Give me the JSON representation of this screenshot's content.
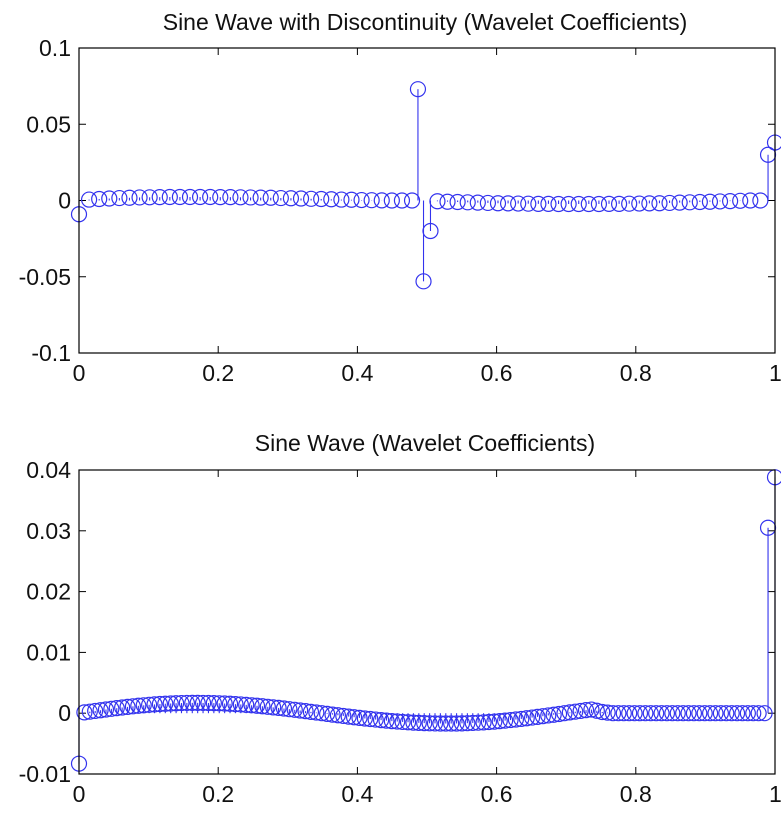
{
  "style": {
    "series_color": "#3333ee",
    "axis_color": "#000000",
    "background": "#ffffff"
  },
  "chart_data": [
    {
      "type": "stem",
      "title": "Sine Wave with Discontinuity (Wavelet Coefficients)",
      "xlabel": "",
      "ylabel": "",
      "xlim": [
        0,
        1
      ],
      "ylim": [
        -0.1,
        0.1
      ],
      "xticks": [
        0,
        0.2,
        0.4,
        0.6,
        0.8,
        1
      ],
      "xtick_labels": [
        "0",
        "0.2",
        "0.4",
        "0.6",
        "0.8",
        "1"
      ],
      "yticks": [
        -0.1,
        -0.05,
        0,
        0.05,
        0.1
      ],
      "ytick_labels": [
        "-0.1",
        "-0.05",
        "0",
        "0.05",
        "0.1"
      ],
      "grid": false,
      "x": [
        0,
        0.0145,
        0.029,
        0.0435,
        0.058,
        0.0725,
        0.087,
        0.1015,
        0.116,
        0.1305,
        0.145,
        0.1595,
        0.174,
        0.1885,
        0.203,
        0.2175,
        0.232,
        0.2465,
        0.261,
        0.2755,
        0.29,
        0.3045,
        0.319,
        0.3335,
        0.348,
        0.3625,
        0.377,
        0.3915,
        0.406,
        0.4205,
        0.435,
        0.4495,
        0.464,
        0.4785,
        0.487,
        0.495,
        0.505,
        0.515,
        0.5295,
        0.544,
        0.5585,
        0.573,
        0.5875,
        0.602,
        0.6165,
        0.631,
        0.6455,
        0.66,
        0.6745,
        0.689,
        0.7035,
        0.718,
        0.7325,
        0.747,
        0.7615,
        0.776,
        0.7905,
        0.805,
        0.8195,
        0.834,
        0.8485,
        0.863,
        0.8775,
        0.892,
        0.9065,
        0.921,
        0.9355,
        0.95,
        0.9645,
        0.979,
        0.99,
        1
      ],
      "y": [
        -0.009,
        0.0006,
        0.001,
        0.0013,
        0.0016,
        0.0018,
        0.002,
        0.0021,
        0.0022,
        0.0023,
        0.0023,
        0.0023,
        0.0023,
        0.0023,
        0.0022,
        0.0022,
        0.0021,
        0.002,
        0.0019,
        0.0018,
        0.0016,
        0.0015,
        0.0013,
        0.0011,
        0.001,
        0.0008,
        0.0006,
        0.0005,
        0.0003,
        0.0002,
        0.0001,
        0,
        0,
        0,
        0.073,
        -0.053,
        -0.02,
        -0.0005,
        -0.0008,
        -0.001,
        -0.0012,
        -0.0014,
        -0.0016,
        -0.0018,
        -0.0019,
        -0.002,
        -0.0021,
        -0.0022,
        -0.0022,
        -0.0023,
        -0.0023,
        -0.0023,
        -0.0023,
        -0.0023,
        -0.0022,
        -0.0022,
        -0.0021,
        -0.002,
        -0.0019,
        -0.0018,
        -0.0016,
        -0.0014,
        -0.0012,
        -0.001,
        -0.0008,
        -0.0006,
        -0.0004,
        -0.0002,
        0,
        0,
        0.03,
        0.038
      ]
    },
    {
      "type": "stem",
      "title": "Sine Wave (Wavelet Coefficients)",
      "xlabel": "",
      "ylabel": "",
      "xlim": [
        0,
        1
      ],
      "ylim": [
        -0.01,
        0.04
      ],
      "xticks": [
        0,
        0.2,
        0.4,
        0.6,
        0.8,
        1
      ],
      "xtick_labels": [
        "0",
        "0.2",
        "0.4",
        "0.6",
        "0.8",
        "1"
      ],
      "yticks": [
        -0.01,
        0,
        0.01,
        0.02,
        0.03,
        0.04
      ],
      "ytick_labels": [
        "-0.01",
        "0",
        "0.01",
        "0.02",
        "0.03",
        "0.04"
      ],
      "grid": false,
      "x": [
        0,
        0.00775,
        0.0155,
        0.02325,
        0.031,
        0.03875,
        0.0465,
        0.05425,
        0.062,
        0.06975,
        0.0775,
        0.08525,
        0.093,
        0.10075,
        0.1085,
        0.11625,
        0.124,
        0.13175,
        0.1395,
        0.14725,
        0.155,
        0.16275,
        0.1705,
        0.17825,
        0.186,
        0.19375,
        0.2015,
        0.20925,
        0.217,
        0.22475,
        0.2325,
        0.24025,
        0.248,
        0.25575,
        0.2635,
        0.27125,
        0.279,
        0.28675,
        0.2945,
        0.30225,
        0.31,
        0.31775,
        0.3255,
        0.33325,
        0.341,
        0.34875,
        0.3565,
        0.36425,
        0.372,
        0.37975,
        0.3875,
        0.39525,
        0.403,
        0.41075,
        0.4185,
        0.42625,
        0.434,
        0.44175,
        0.4495,
        0.45725,
        0.465,
        0.47275,
        0.4805,
        0.48825,
        0.496,
        0.50375,
        0.5115,
        0.51925,
        0.527,
        0.53475,
        0.5425,
        0.55025,
        0.558,
        0.56575,
        0.5735,
        0.58125,
        0.589,
        0.59675,
        0.6045,
        0.61225,
        0.62,
        0.62775,
        0.6355,
        0.64325,
        0.651,
        0.65875,
        0.6665,
        0.67425,
        0.682,
        0.68975,
        0.6975,
        0.70525,
        0.713,
        0.72075,
        0.7285,
        0.73625,
        0.744,
        0.75175,
        0.7595,
        0.76725,
        0.775,
        0.78275,
        0.7905,
        0.79825,
        0.806,
        0.81375,
        0.8215,
        0.82925,
        0.837,
        0.84475,
        0.8525,
        0.86025,
        0.868,
        0.87575,
        0.8835,
        0.89125,
        0.899,
        0.90675,
        0.9145,
        0.92225,
        0.93,
        0.93775,
        0.9455,
        0.95325,
        0.961,
        0.96875,
        0.9765,
        0.985,
        0.99,
        1
      ],
      "y": [
        -0.0083,
        0.00013,
        0.00025,
        0.00037,
        0.00049,
        0.00061,
        0.00072,
        0.00083,
        0.00094,
        0.00104,
        0.00113,
        0.00122,
        0.0013,
        0.00138,
        0.00145,
        0.00151,
        0.00156,
        0.0016,
        0.00164,
        0.00167,
        0.00169,
        0.0017,
        0.0017,
        0.00169,
        0.00168,
        0.00166,
        0.00163,
        0.00159,
        0.00155,
        0.00149,
        0.00144,
        0.00137,
        0.0013,
        0.00122,
        0.00114,
        0.00105,
        0.00096,
        0.00087,
        0.00077,
        0.00066,
        0.00056,
        0.00045,
        0.00034,
        0.00022,
        0.00011,
        0,
        -0.00011,
        -0.00023,
        -0.00034,
        -0.00045,
        -0.00056,
        -0.00066,
        -0.00077,
        -0.00087,
        -0.00096,
        -0.00105,
        -0.00114,
        -0.00122,
        -0.0013,
        -0.00137,
        -0.00144,
        -0.00149,
        -0.00155,
        -0.00159,
        -0.00163,
        -0.00166,
        -0.00168,
        -0.00169,
        -0.0017,
        -0.0017,
        -0.00169,
        -0.00167,
        -0.00164,
        -0.0016,
        -0.00156,
        -0.00151,
        -0.00145,
        -0.00138,
        -0.0013,
        -0.00122,
        -0.00113,
        -0.00104,
        -0.00094,
        -0.00083,
        -0.00072,
        -0.00061,
        -0.00049,
        -0.00037,
        -0.00025,
        -0.00013,
        0,
        0.00013,
        0.00025,
        0.00037,
        0.0005,
        0.0006,
        0.0004,
        0.0002,
        0.0001,
        0,
        0,
        0,
        0,
        0,
        0,
        0,
        0,
        0,
        0,
        0,
        0,
        0,
        0,
        0,
        0,
        0,
        0,
        0,
        0,
        0,
        0,
        0,
        0,
        0,
        0,
        0,
        0,
        0,
        0.0305,
        0.0388
      ]
    }
  ]
}
